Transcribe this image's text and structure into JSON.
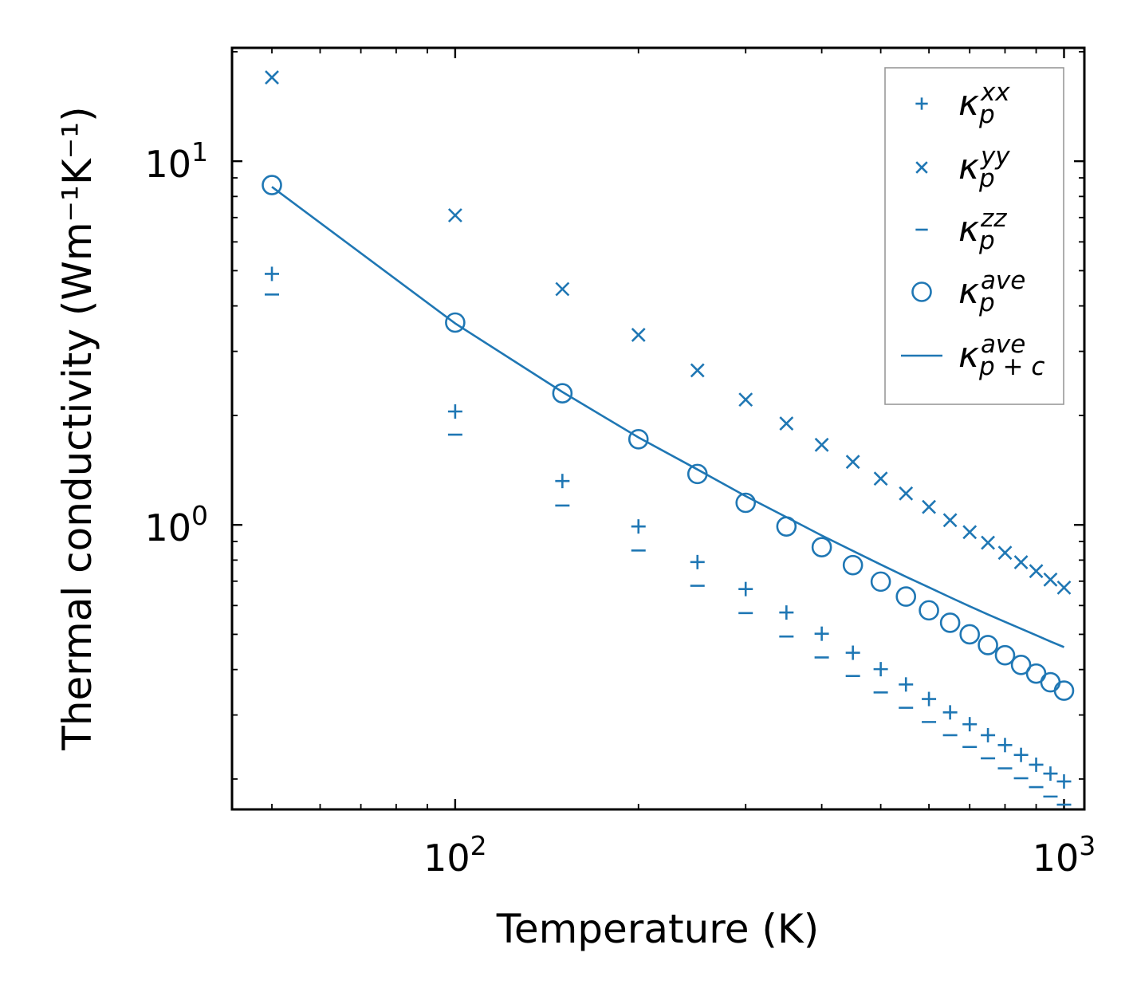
{
  "chart_data": {
    "type": "scatter",
    "xscale": "log",
    "yscale": "log",
    "xlim": [
      43,
      1080
    ],
    "ylim": [
      0.165,
      20.5
    ],
    "xlabel": "Temperature (K)",
    "ylabel": "Thermal conductivity (Wm⁻¹K⁻¹)",
    "xticks": [
      {
        "value": 100,
        "base": "10",
        "exp": "2"
      },
      {
        "value": 1000,
        "base": "10",
        "exp": "3"
      }
    ],
    "yticks": [
      {
        "value": 1,
        "base": "10",
        "exp": "0"
      },
      {
        "value": 10,
        "base": "10",
        "exp": "1"
      }
    ],
    "color": "#1f77b4",
    "legend_position": "top-right",
    "x": [
      50,
      100,
      150,
      200,
      250,
      300,
      350,
      400,
      450,
      500,
      550,
      600,
      650,
      700,
      750,
      800,
      850,
      900,
      950,
      1000
    ],
    "series": [
      {
        "name": "kappa_p_xx",
        "sym": "κ",
        "sub": "p",
        "sup": "xx",
        "marker": "plus",
        "values": [
          4.9,
          2.05,
          1.32,
          0.99,
          0.79,
          0.666,
          0.574,
          0.502,
          0.445,
          0.401,
          0.364,
          0.332,
          0.305,
          0.283,
          0.264,
          0.248,
          0.233,
          0.219,
          0.207,
          0.197
        ]
      },
      {
        "name": "kappa_p_yy",
        "sym": "κ",
        "sub": "p",
        "sup": "yy",
        "marker": "x",
        "values": [
          17.0,
          7.1,
          4.45,
          3.33,
          2.66,
          2.21,
          1.9,
          1.66,
          1.49,
          1.34,
          1.22,
          1.12,
          1.03,
          0.955,
          0.893,
          0.838,
          0.789,
          0.746,
          0.707,
          0.672
        ]
      },
      {
        "name": "kappa_p_zz",
        "sym": "κ",
        "sub": "p",
        "sup": "zz",
        "marker": "minus",
        "values": [
          4.3,
          1.77,
          1.13,
          0.85,
          0.68,
          0.572,
          0.493,
          0.432,
          0.384,
          0.346,
          0.314,
          0.287,
          0.264,
          0.245,
          0.228,
          0.214,
          0.201,
          0.19,
          0.179,
          0.17
        ]
      },
      {
        "name": "kappa_p_ave",
        "sym": "κ",
        "sub": "p",
        "sup": "ave",
        "marker": "circle",
        "values": [
          8.6,
          3.6,
          2.3,
          1.72,
          1.38,
          1.15,
          0.99,
          0.868,
          0.775,
          0.698,
          0.635,
          0.582,
          0.538,
          0.5,
          0.467,
          0.438,
          0.412,
          0.39,
          0.369,
          0.35
        ]
      },
      {
        "name": "kappa_p_plus_c_ave",
        "sym": "κ",
        "sub": "p + c",
        "sup": "ave",
        "marker": "line",
        "values": [
          8.5,
          3.58,
          2.32,
          1.74,
          1.42,
          1.2,
          1.05,
          0.935,
          0.848,
          0.778,
          0.72,
          0.673,
          0.632,
          0.597,
          0.567,
          0.541,
          0.518,
          0.497,
          0.478,
          0.461
        ]
      }
    ]
  }
}
